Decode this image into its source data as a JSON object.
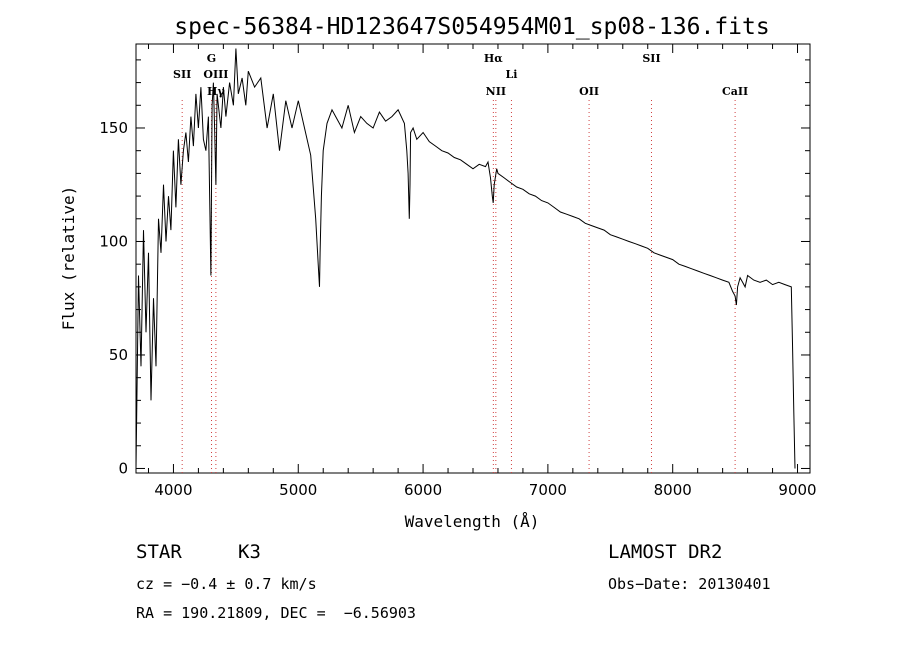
{
  "chart_data": {
    "type": "line",
    "title": "spec-56384-HD123647S054954M01_sp08-136.fits",
    "xlabel": "Wavelength (Å)",
    "ylabel": "Flux (relative)",
    "xlim": [
      3700,
      9100
    ],
    "ylim": [
      -2,
      187
    ],
    "xticks": [
      4000,
      5000,
      6000,
      7000,
      8000,
      9000
    ],
    "yticks": [
      0,
      50,
      100,
      150
    ],
    "grid": false,
    "series": [
      {
        "x": [
          3700,
          3720,
          3740,
          3760,
          3780,
          3800,
          3820,
          3840,
          3860,
          3880,
          3900,
          3920,
          3940,
          3960,
          3980,
          4000,
          4020,
          4040,
          4060,
          4080,
          4100,
          4120,
          4140,
          4160,
          4180,
          4200,
          4220,
          4240,
          4260,
          4280,
          4300,
          4310,
          4320,
          4330,
          4340,
          4350,
          4380,
          4400,
          4420,
          4450,
          4480,
          4500,
          4520,
          4550,
          4580,
          4600,
          4650,
          4700,
          4750,
          4800,
          4850,
          4900,
          4950,
          5000,
          5050,
          5100,
          5140,
          5160,
          5170,
          5175,
          5185,
          5200,
          5230,
          5270,
          5300,
          5350,
          5400,
          5450,
          5500,
          5550,
          5600,
          5650,
          5700,
          5750,
          5800,
          5850,
          5870,
          5880,
          5890,
          5895,
          5900,
          5920,
          5950,
          6000,
          6050,
          6100,
          6150,
          6200,
          6250,
          6300,
          6350,
          6400,
          6450,
          6500,
          6520,
          6540,
          6555,
          6562,
          6570,
          6590,
          6600,
          6650,
          6700,
          6750,
          6800,
          6850,
          6900,
          6950,
          7000,
          7050,
          7100,
          7150,
          7200,
          7250,
          7300,
          7350,
          7400,
          7450,
          7500,
          7550,
          7600,
          7650,
          7700,
          7750,
          7800,
          7850,
          7900,
          7950,
          8000,
          8050,
          8100,
          8150,
          8200,
          8250,
          8300,
          8350,
          8400,
          8450,
          8480,
          8500,
          8510,
          8520,
          8540,
          8560,
          8580,
          8600,
          8650,
          8700,
          8750,
          8800,
          8850,
          8900,
          8950,
          8960,
          8970,
          8980
        ],
        "y": [
          0,
          85,
          45,
          105,
          60,
          95,
          30,
          75,
          45,
          110,
          95,
          125,
          100,
          120,
          105,
          140,
          115,
          145,
          125,
          140,
          148,
          135,
          155,
          142,
          165,
          150,
          168,
          145,
          140,
          155,
          85,
          160,
          170,
          150,
          125,
          165,
          150,
          168,
          155,
          170,
          160,
          185,
          165,
          172,
          160,
          175,
          168,
          172,
          150,
          165,
          140,
          162,
          150,
          162,
          150,
          138,
          110,
          90,
          80,
          95,
          120,
          140,
          152,
          158,
          155,
          150,
          160,
          148,
          155,
          152,
          150,
          157,
          153,
          155,
          158,
          152,
          140,
          130,
          110,
          125,
          148,
          150,
          145,
          148,
          144,
          142,
          140,
          139,
          137,
          136,
          134,
          132,
          134,
          133,
          135,
          128,
          120,
          117,
          125,
          132,
          130,
          128,
          126,
          124,
          123,
          121,
          120,
          118,
          117,
          115,
          113,
          112,
          111,
          110,
          108,
          107,
          106,
          105,
          103,
          102,
          101,
          100,
          99,
          98,
          97,
          95,
          94,
          93,
          92,
          90,
          89,
          88,
          87,
          86,
          85,
          84,
          83,
          82,
          78,
          76,
          72,
          80,
          84,
          82,
          80,
          85,
          83,
          82,
          83,
          81,
          82,
          81,
          80,
          55,
          25,
          0
        ]
      }
    ],
    "annotations": [
      {
        "label": "SII",
        "x": 4070,
        "row": 2
      },
      {
        "label": "G",
        "x": 4305,
        "row": 1
      },
      {
        "label": "OIII",
        "x": 4340,
        "row": 2
      },
      {
        "label": "Hγ",
        "x": 4340,
        "row": 3
      },
      {
        "label": "Hα",
        "x": 6563,
        "row": 1
      },
      {
        "label": "Li",
        "x": 6708,
        "row": 2
      },
      {
        "label": "NII",
        "x": 6583,
        "row": 3
      },
      {
        "label": "OII",
        "x": 7330,
        "row": 3
      },
      {
        "label": "SII",
        "x": 7830,
        "row": 1
      },
      {
        "label": "CaII",
        "x": 8500,
        "row": 3
      }
    ]
  },
  "footer": {
    "object_type": "STAR",
    "spectral_class": "K3",
    "survey": "LAMOST DR2",
    "cz": "cz = −0.4 ± 0.7 km/s",
    "obs_date": "Obs−Date: 20130401",
    "coords": "RA = 190.21809, DEC =  −6.56903"
  }
}
